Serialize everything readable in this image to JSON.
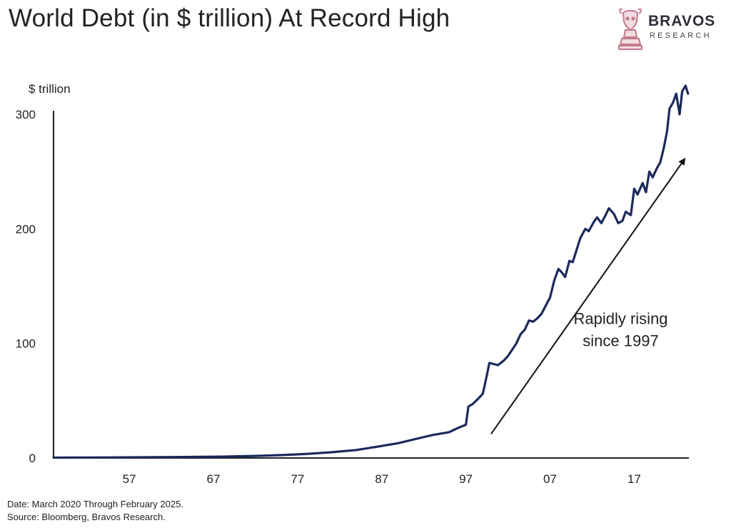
{
  "brand": {
    "name": "BRAVOS",
    "subtitle": "RESEARCH",
    "accent": "#c47a8c",
    "icon": "bull-knight-chess-icon"
  },
  "footnotes": {
    "date": "Date: March 2020 Through February 2025.",
    "source": "Source: Bloomberg, Bravos Research."
  },
  "chart_data": {
    "type": "line",
    "title": "World Debt (in $ trillion) At Record High",
    "ylabel": "$ trillion",
    "xlabel": "",
    "xlim": [
      1948,
      2023.5
    ],
    "ylim": [
      0,
      300
    ],
    "y_ticks": [
      0,
      100,
      200,
      300
    ],
    "x_ticks": [
      {
        "value": 1957,
        "label": "57"
      },
      {
        "value": 1967,
        "label": "67"
      },
      {
        "value": 1977,
        "label": "77"
      },
      {
        "value": 1987,
        "label": "87"
      },
      {
        "value": 1997,
        "label": "97"
      },
      {
        "value": 2007,
        "label": "07"
      },
      {
        "value": 2017,
        "label": "17"
      }
    ],
    "grid": false,
    "line_color": "#1b2a5c",
    "series": [
      {
        "x": [
          1948,
          1955,
          1962,
          1968,
          1972,
          1975,
          1978,
          1981,
          1984,
          1987,
          1989,
          1991,
          1993,
          1995,
          1996,
          1997,
          1997.3,
          1997.8,
          1998.5,
          1999,
          1999.2,
          1999.8,
          2000.3,
          2000.8,
          2001.5,
          2002,
          2003,
          2003.5,
          2004,
          2004.5,
          2005,
          2005.5,
          2006,
          2006.7,
          2007,
          2007.5,
          2008,
          2008.4,
          2008.8,
          2009.3,
          2009.7,
          2010.3,
          2010.6,
          2011.2,
          2011.6,
          2012.2,
          2012.6,
          2013.1,
          2013.6,
          2014,
          2014.6,
          2015.1,
          2015.6,
          2016,
          2016.6,
          2017,
          2017.4,
          2018,
          2018.4,
          2018.8,
          2019.2,
          2019.7,
          2020.1,
          2020.5,
          2020.9,
          2021.2,
          2021.6,
          2022,
          2022.4,
          2022.7,
          2023.1,
          2023.4
        ],
        "values": [
          0.3,
          0.5,
          0.8,
          1.2,
          1.8,
          2.5,
          3.5,
          5,
          7,
          10.5,
          13,
          16.5,
          20,
          22.5,
          26,
          29,
          45,
          47,
          52,
          56,
          62,
          83,
          82,
          81,
          85,
          89,
          100,
          108,
          112,
          120,
          119,
          122,
          126,
          136,
          140,
          155,
          165,
          162,
          158,
          172,
          171,
          185,
          192,
          200,
          198,
          206,
          210,
          205,
          212,
          218,
          213,
          205,
          207,
          215,
          212,
          235,
          230,
          240,
          232,
          250,
          245,
          253,
          258,
          270,
          285,
          305,
          310,
          318,
          300,
          320,
          325,
          318
        ]
      }
    ],
    "annotations": [
      {
        "lines": [
          "Rapidly rising",
          "since 1997"
        ],
        "x": 2015.4,
        "y": 117
      },
      {
        "type": "arrow",
        "from": [
          2000,
          21
        ],
        "to": [
          2023,
          261
        ]
      }
    ]
  }
}
